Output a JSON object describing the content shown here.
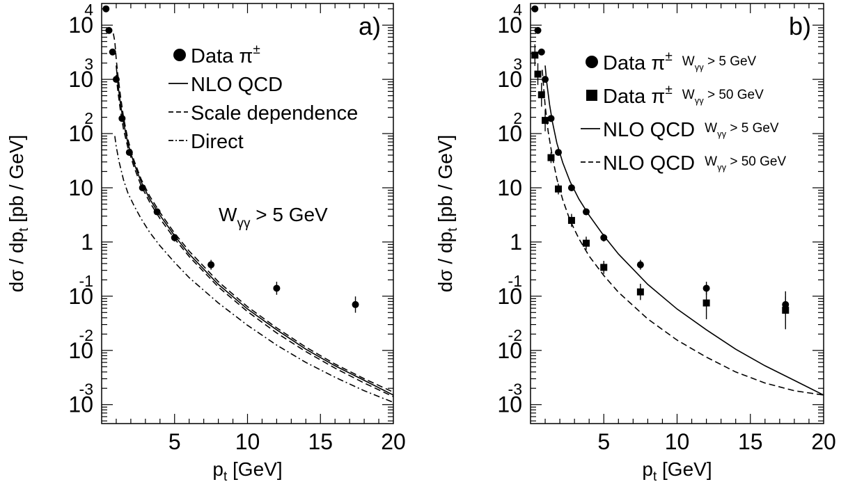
{
  "chart_data": [
    {
      "type": "scatter",
      "panel_label": "a)",
      "xlabel": "p",
      "xlabel_sub": "t",
      "xlabel_unit": "[GeV]",
      "ylabel": "dσ / dp",
      "ylabel_sub": "t",
      "ylabel_unit": "[pb / GeV]",
      "xlim": [
        0,
        20
      ],
      "ylim_log10": [
        -3.35,
        4.4
      ],
      "y_scale": "log",
      "xticks": [
        5,
        10,
        15,
        20
      ],
      "ytick_labels": [
        {
          "value": 4,
          "base": "10",
          "exp": "4"
        },
        {
          "value": 3,
          "base": "10",
          "exp": "3"
        },
        {
          "value": 2,
          "base": "10",
          "exp": "2"
        },
        {
          "value": 1,
          "base": "10",
          "exp": ""
        },
        {
          "value": 0,
          "base": "1",
          "exp": ""
        },
        {
          "value": -1,
          "base": "10",
          "exp": "-1"
        },
        {
          "value": -2,
          "base": "10",
          "exp": "-2"
        },
        {
          "value": -3,
          "base": "10",
          "exp": "-3"
        }
      ],
      "annotation": {
        "main": "W",
        "sub": "γγ",
        "rest": " > 5 GeV"
      },
      "legend_position": "top-right",
      "legend": [
        {
          "marker": "circle",
          "label": "Data π",
          "sup": "±",
          "sub": ""
        },
        {
          "marker": "solid",
          "label": "NLO QCD",
          "sup": "",
          "sub": ""
        },
        {
          "marker": "dashed",
          "label": "Scale dependence",
          "sup": "",
          "sub": ""
        },
        {
          "marker": "dashdot",
          "label": "Direct",
          "sup": "",
          "sub": ""
        }
      ],
      "points": [
        {
          "name": "Data π±",
          "marker": "circle",
          "x": [
            0.3,
            0.5,
            0.75,
            1.0,
            1.4,
            1.9,
            2.8,
            3.8,
            5.0,
            7.5,
            12.0,
            17.4
          ],
          "y": [
            20000,
            8000,
            3200,
            1000,
            190,
            45,
            10,
            3.6,
            1.2,
            0.38,
            0.14,
            0.07
          ],
          "err_log10": [
            0.05,
            0.05,
            0.05,
            0.05,
            0.05,
            0.05,
            0.05,
            0.06,
            0.07,
            0.09,
            0.12,
            0.15
          ]
        }
      ],
      "curves": [
        {
          "name": "NLO QCD",
          "style": "solid",
          "x": [
            1.0,
            1.1,
            1.3,
            1.5,
            1.8,
            2.2,
            2.7,
            3.3,
            4.0,
            5.0,
            6.0,
            8.0,
            10.0,
            12.0,
            14.0,
            16.0,
            18.0,
            20.0
          ],
          "y": [
            1800,
            900,
            340,
            160,
            66,
            29,
            13,
            6.2,
            3.1,
            1.3,
            0.6,
            0.165,
            0.058,
            0.024,
            0.0105,
            0.0052,
            0.0028,
            0.0015
          ]
        },
        {
          "name": "Scale dependence (upper)",
          "style": "dashed",
          "x": [
            0.8,
            0.9,
            1.0,
            1.1,
            1.3,
            1.5,
            1.8,
            2.2,
            2.7,
            3.3,
            4.0,
            5.0,
            6.0,
            8.0,
            10.0,
            12.0,
            14.0,
            16.0,
            18.0,
            20.0
          ],
          "y": [
            7000,
            5000,
            2400,
            1300,
            480,
            200,
            78,
            33,
            14.5,
            7.0,
            3.5,
            1.45,
            0.68,
            0.185,
            0.064,
            0.026,
            0.0115,
            0.0056,
            0.003,
            0.0017
          ]
        },
        {
          "name": "Scale dependence (lower)",
          "style": "dashed",
          "x": [
            1.0,
            1.1,
            1.3,
            1.5,
            1.8,
            2.2,
            2.7,
            3.3,
            4.0,
            5.0,
            6.0,
            8.0,
            10.0,
            12.0,
            14.0,
            16.0,
            18.0,
            20.0
          ],
          "y": [
            1200,
            650,
            250,
            120,
            55,
            25,
            11,
            5.4,
            2.7,
            1.15,
            0.54,
            0.148,
            0.052,
            0.021,
            0.0095,
            0.0047,
            0.0025,
            0.0014
          ]
        },
        {
          "name": "Direct",
          "style": "dashdot",
          "x": [
            0.9,
            1.0,
            1.2,
            1.5,
            1.8,
            2.2,
            2.7,
            3.3,
            4.0,
            5.0,
            6.0,
            8.0,
            10.0,
            12.0,
            14.0,
            16.0,
            18.0,
            20.0
          ],
          "y": [
            90,
            58,
            30,
            14,
            8,
            4.8,
            2.7,
            1.5,
            0.85,
            0.42,
            0.22,
            0.075,
            0.029,
            0.0125,
            0.006,
            0.0032,
            0.0018,
            0.0011
          ]
        }
      ]
    },
    {
      "type": "scatter",
      "panel_label": "b)",
      "xlabel": "p",
      "xlabel_sub": "t",
      "xlabel_unit": "[GeV]",
      "ylabel": "dσ / dp",
      "ylabel_sub": "t",
      "ylabel_unit": "[pb / GeV]",
      "xlim": [
        0,
        20
      ],
      "ylim_log10": [
        -3.35,
        4.4
      ],
      "y_scale": "log",
      "xticks": [
        5,
        10,
        15,
        20
      ],
      "ytick_labels": [
        {
          "value": 4,
          "base": "10",
          "exp": "4"
        },
        {
          "value": 3,
          "base": "10",
          "exp": "3"
        },
        {
          "value": 2,
          "base": "10",
          "exp": "2"
        },
        {
          "value": 1,
          "base": "10",
          "exp": ""
        },
        {
          "value": 0,
          "base": "1",
          "exp": ""
        },
        {
          "value": -1,
          "base": "10",
          "exp": "-1"
        },
        {
          "value": -2,
          "base": "10",
          "exp": "-2"
        },
        {
          "value": -3,
          "base": "10",
          "exp": "-3"
        }
      ],
      "legend_position": "top-right",
      "legend": [
        {
          "marker": "circle",
          "label": "Data π",
          "sup": "±",
          "cut_main": "W",
          "cut_sub": "γγ",
          "cut_rest": " > 5 GeV"
        },
        {
          "marker": "square",
          "label": "Data π",
          "sup": "±",
          "cut_main": "W",
          "cut_sub": "γγ",
          "cut_rest": " > 50 GeV"
        },
        {
          "marker": "solid",
          "label": "NLO QCD",
          "sup": "",
          "cut_main": "W",
          "cut_sub": "γγ",
          "cut_rest": " > 5 GeV"
        },
        {
          "marker": "dashed",
          "label": "NLO QCD",
          "sup": "",
          "cut_main": "W",
          "cut_sub": "γγ",
          "cut_rest": " > 50 GeV"
        }
      ],
      "points": [
        {
          "name": "Data π± Wγγ > 5 GeV",
          "marker": "circle",
          "x": [
            0.3,
            0.5,
            0.75,
            1.0,
            1.4,
            1.9,
            2.8,
            3.8,
            5.0,
            7.5,
            12.0,
            17.4
          ],
          "y": [
            20000,
            8000,
            3200,
            1000,
            190,
            45,
            10,
            3.6,
            1.2,
            0.38,
            0.14,
            0.07
          ],
          "err_log10": [
            0.05,
            0.05,
            0.05,
            0.05,
            0.05,
            0.05,
            0.05,
            0.06,
            0.07,
            0.09,
            0.12,
            0.15
          ]
        },
        {
          "name": "Data π± Wγγ > 50 GeV",
          "marker": "square",
          "x": [
            0.3,
            0.5,
            0.75,
            1.0,
            1.4,
            1.9,
            2.8,
            3.8,
            5.0,
            7.5,
            12.0,
            17.4
          ],
          "y": [
            2800,
            1250,
            520,
            175,
            36,
            9.5,
            2.5,
            0.95,
            0.34,
            0.12,
            0.075,
            0.055
          ],
          "err_log10": [
            0.2,
            0.2,
            0.22,
            0.2,
            0.1,
            0.1,
            0.12,
            0.12,
            0.12,
            0.15,
            0.3,
            0.35
          ]
        }
      ],
      "curves": [
        {
          "name": "NLO QCD Wγγ > 5 GeV",
          "style": "solid",
          "x": [
            1.0,
            1.1,
            1.3,
            1.5,
            1.8,
            2.2,
            2.7,
            3.3,
            4.0,
            5.0,
            6.0,
            8.0,
            10.0,
            12.0,
            14.0,
            16.0,
            18.0,
            20.0
          ],
          "y": [
            1800,
            900,
            340,
            160,
            66,
            29,
            13,
            6.2,
            3.1,
            1.3,
            0.6,
            0.165,
            0.058,
            0.024,
            0.0105,
            0.0052,
            0.0028,
            0.0015
          ]
        },
        {
          "name": "NLO QCD Wγγ > 50 GeV",
          "style": "dashed",
          "x": [
            0.8,
            0.9,
            1.0,
            1.2,
            1.5,
            1.8,
            2.2,
            2.7,
            3.3,
            4.0,
            5.0,
            6.0,
            8.0,
            10.0,
            12.0,
            14.0,
            16.0,
            18.0,
            20.0
          ],
          "y": [
            1500,
            700,
            330,
            110,
            36,
            14.5,
            6.0,
            2.5,
            1.15,
            0.55,
            0.24,
            0.118,
            0.038,
            0.0155,
            0.0075,
            0.004,
            0.0025,
            0.0018,
            0.0015
          ]
        }
      ]
    }
  ]
}
